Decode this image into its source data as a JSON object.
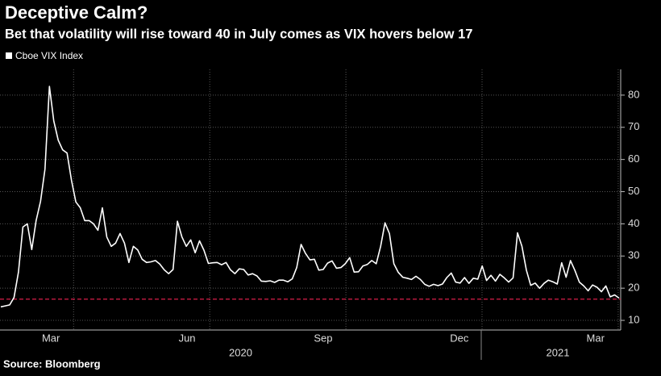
{
  "chart_data": {
    "type": "line",
    "title": "Deceptive Calm?",
    "subtitle": "Bet that volatility will rise toward 40 in July comes as VIX hovers below 17",
    "source": "Source: Bloomberg",
    "series": [
      {
        "name": "Cboe VIX Index",
        "color": "#ffffff",
        "values": [
          14.2,
          14.5,
          14.8,
          17.1,
          25,
          39,
          40,
          32,
          41,
          47,
          57,
          82.7,
          72,
          66,
          63,
          62,
          53.5,
          46.8,
          45,
          41,
          41,
          40,
          38,
          45,
          35.9,
          33,
          34,
          37,
          34,
          28,
          33,
          31.9,
          29,
          28,
          28.2,
          28.6,
          27.5,
          25.7,
          24.5,
          25.8,
          40.8,
          36,
          33,
          35,
          31,
          34.7,
          31.8,
          27.7,
          27.9,
          28,
          27.3,
          28,
          25.7,
          24.5,
          26,
          25.8,
          24.1,
          24.5,
          23.8,
          22.2,
          22.1,
          22.3,
          21.8,
          22.5,
          22.5,
          22,
          22.9,
          26.4,
          33.6,
          30.8,
          28.8,
          29,
          25.6,
          25.8,
          27.8,
          28.5,
          26.2,
          26.4,
          27.6,
          29.5,
          25,
          25.1,
          26.9,
          27.4,
          28.6,
          27.6,
          33,
          40.3,
          37,
          27.6,
          24.9,
          23.4,
          23.1,
          22.7,
          23.7,
          22.7,
          21.2,
          20.6,
          21.2,
          20.8,
          21.3,
          23.3,
          24.7,
          21.9,
          21.6,
          23.3,
          21.5,
          23.1,
          22.8,
          26.9,
          22.4,
          24,
          22.2,
          24.3,
          23.2,
          21.9,
          23.2,
          37.2,
          33,
          25.6,
          20.9,
          21.6,
          19.97,
          21.5,
          22.5,
          22,
          21.3,
          27.9,
          23.4,
          28.6,
          25.5,
          21.9,
          20.7,
          19.2,
          21,
          20.3,
          18.9,
          20.7,
          17.3,
          17.9,
          16.9
        ]
      }
    ],
    "reference_line": {
      "value": 16.6,
      "color": "#d81e4a"
    },
    "xticks": [
      {
        "value": "2020-03",
        "label": "Mar"
      },
      {
        "value": "2020-06",
        "label": "Jun"
      },
      {
        "value": "2020-09",
        "label": "Sep"
      },
      {
        "value": "2020-12",
        "label": "Dec"
      },
      {
        "value": "2021-03",
        "label": "Mar"
      }
    ],
    "years": [
      "2020",
      "2021"
    ],
    "ylim": [
      7,
      88
    ],
    "yticks": [
      10,
      20,
      30,
      40,
      50,
      60,
      70,
      80
    ],
    "grid": true
  }
}
